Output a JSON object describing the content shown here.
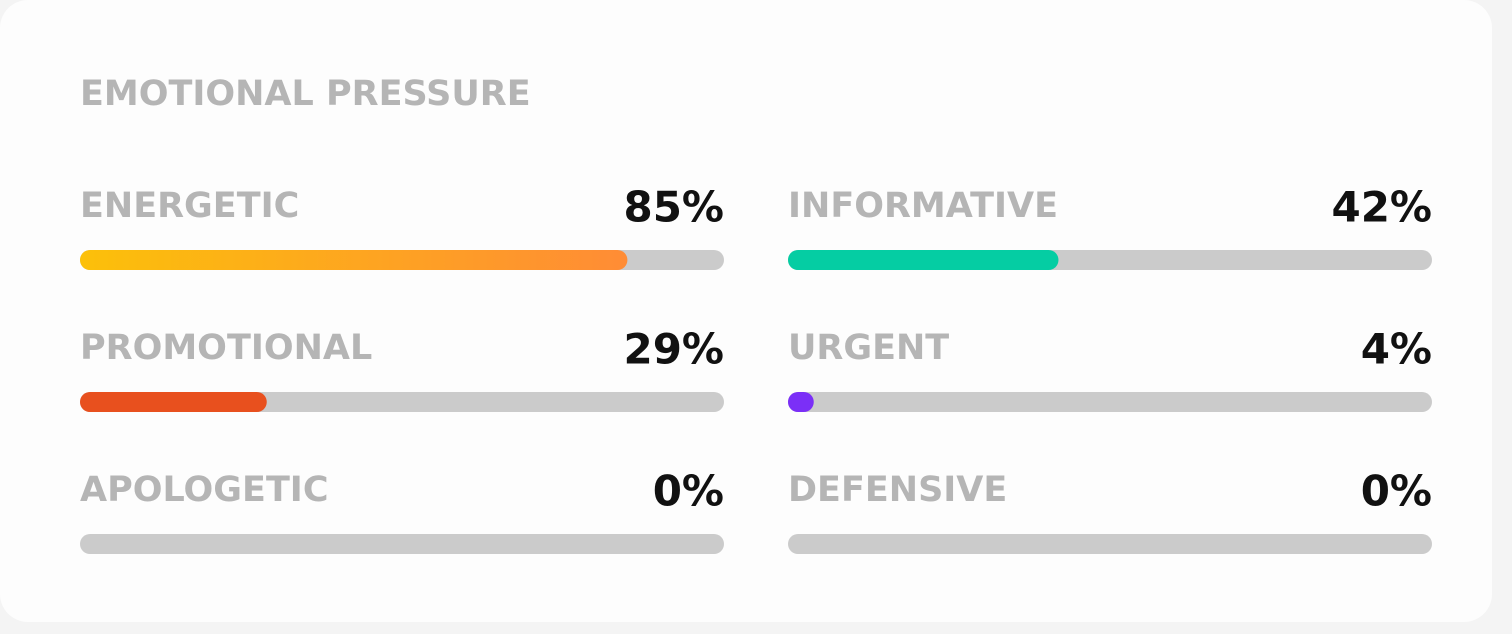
{
  "title": "EMOTIONAL PRESSURE",
  "range": [
    0,
    100
  ],
  "track_color": "#cbcbcb",
  "items": [
    {
      "label": "ENERGETIC",
      "value": 85,
      "value_label": "85%",
      "colors": [
        "#fcc00a",
        "#ff8c35"
      ]
    },
    {
      "label": "INFORMATIVE",
      "value": 42,
      "value_label": "42%",
      "colors": [
        "#05cda3"
      ]
    },
    {
      "label": "PROMOTIONAL",
      "value": 29,
      "value_label": "29%",
      "colors": [
        "#e8501e"
      ]
    },
    {
      "label": "URGENT",
      "value": 4,
      "value_label": "4%",
      "colors": [
        "#7b2ff7"
      ]
    },
    {
      "label": "APOLOGETIC",
      "value": 0,
      "value_label": "0%",
      "colors": [
        "#cbcbcb"
      ]
    },
    {
      "label": "DEFENSIVE",
      "value": 0,
      "value_label": "0%",
      "colors": [
        "#cbcbcb"
      ]
    }
  ]
}
